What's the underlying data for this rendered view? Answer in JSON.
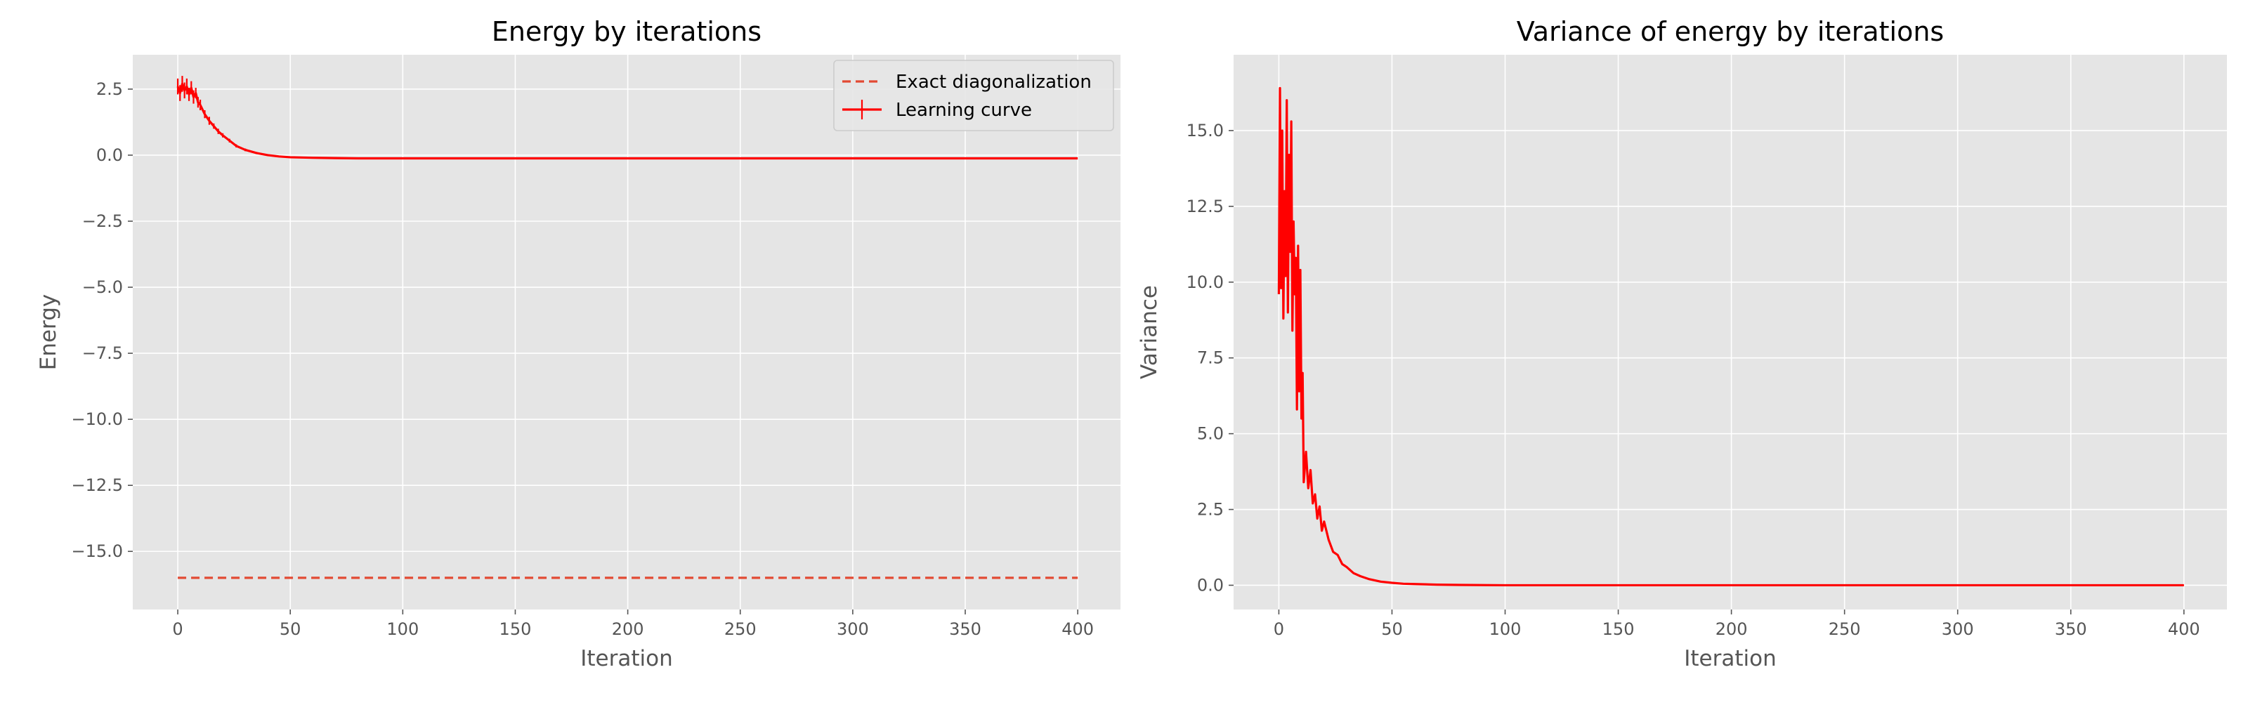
{
  "colors": {
    "background": "#ffffff",
    "axes_face": "#e5e5e5",
    "grid": "#ffffff",
    "text": "#000000",
    "tick_text": "#555555",
    "series": "#ff0000",
    "reference_line": "#e24a33"
  },
  "chart_data": [
    {
      "type": "line",
      "title": "Energy by iterations",
      "xlabel": "Iteration",
      "ylabel": "Energy",
      "xlim": [
        -20,
        419
      ],
      "ylim": [
        -17.2,
        3.8
      ],
      "grid": true,
      "legend_position": "top-right",
      "xticks": [
        0,
        50,
        100,
        150,
        200,
        250,
        300,
        350,
        400
      ],
      "xtick_labels": [
        "0",
        "50",
        "100",
        "150",
        "200",
        "250",
        "300",
        "350",
        "400"
      ],
      "yticks": [
        2.5,
        0.0,
        -2.5,
        -5.0,
        -7.5,
        -10.0,
        -12.5,
        -15.0
      ],
      "ytick_labels": [
        "2.5",
        "0.0",
        "−2.5",
        "−5.0",
        "−7.5",
        "−10.0",
        "−12.5",
        "−15.0"
      ],
      "series": [
        {
          "name": "Exact diagonalization",
          "style": "dashed",
          "color": "#e24a33",
          "x": [
            0,
            400
          ],
          "y": [
            -16.0,
            -16.0
          ]
        },
        {
          "name": "Learning curve",
          "style": "solid-errorbar",
          "color": "#ff0000",
          "x": [
            0,
            1,
            2,
            3,
            4,
            5,
            6,
            7,
            8,
            9,
            10,
            12,
            14,
            16,
            18,
            20,
            23,
            26,
            30,
            35,
            40,
            45,
            50,
            60,
            70,
            80,
            100,
            150,
            200,
            250,
            300,
            350,
            400
          ],
          "y": [
            2.6,
            2.35,
            2.7,
            2.45,
            2.6,
            2.3,
            2.55,
            2.2,
            2.35,
            2.0,
            1.9,
            1.55,
            1.3,
            1.1,
            0.9,
            0.75,
            0.55,
            0.35,
            0.2,
            0.08,
            0.0,
            -0.05,
            -0.08,
            -0.1,
            -0.11,
            -0.12,
            -0.12,
            -0.12,
            -0.12,
            -0.12,
            -0.12,
            -0.12,
            -0.12
          ],
          "yerr": [
            0.3,
            0.3,
            0.3,
            0.3,
            0.3,
            0.25,
            0.25,
            0.25,
            0.2,
            0.2,
            0.2,
            0.15,
            0.15,
            0.1,
            0.1,
            0.08,
            0.07,
            0.06,
            0.05,
            0.04,
            0.03,
            0.02,
            0.02,
            0.01,
            0.01,
            0.01,
            0.0,
            0.0,
            0.0,
            0.0,
            0.0,
            0.0,
            0.0
          ]
        }
      ]
    },
    {
      "type": "line",
      "title": "Variance of energy by iterations",
      "xlabel": "Iteration",
      "ylabel": "Variance",
      "xlim": [
        -20,
        419
      ],
      "ylim": [
        -0.8,
        17.5
      ],
      "grid": true,
      "xticks": [
        0,
        50,
        100,
        150,
        200,
        250,
        300,
        350,
        400
      ],
      "xtick_labels": [
        "0",
        "50",
        "100",
        "150",
        "200",
        "250",
        "300",
        "350",
        "400"
      ],
      "yticks": [
        0.0,
        2.5,
        5.0,
        7.5,
        10.0,
        12.5,
        15.0
      ],
      "ytick_labels": [
        "0.0",
        "2.5",
        "5.0",
        "7.5",
        "10.0",
        "12.5",
        "15.0"
      ],
      "series": [
        {
          "style": "solid",
          "color": "#ff0000",
          "x": [
            0,
            0.5,
            1,
            1.5,
            2,
            2.5,
            3,
            3.5,
            4,
            4.5,
            5,
            5.5,
            6,
            6.5,
            7,
            7.5,
            8,
            8.5,
            9,
            9.5,
            10,
            10.5,
            11,
            12,
            13,
            14,
            15,
            16,
            17,
            18,
            19,
            20,
            22,
            24,
            26,
            28,
            30,
            33,
            36,
            40,
            45,
            50,
            55,
            60,
            70,
            80,
            100,
            150,
            200,
            250,
            300,
            350,
            400
          ],
          "y": [
            9.6,
            16.4,
            9.8,
            15.0,
            8.8,
            13.0,
            10.2,
            16.0,
            9.0,
            14.2,
            11.0,
            15.3,
            8.4,
            12.0,
            9.6,
            10.8,
            5.8,
            11.2,
            6.4,
            10.4,
            5.5,
            7.0,
            3.4,
            4.4,
            3.2,
            3.8,
            2.7,
            3.0,
            2.2,
            2.6,
            1.8,
            2.1,
            1.5,
            1.1,
            1.0,
            0.7,
            0.6,
            0.4,
            0.3,
            0.2,
            0.12,
            0.08,
            0.05,
            0.04,
            0.02,
            0.01,
            0.0,
            0.0,
            0.0,
            0.0,
            0.0,
            0.0,
            0.0
          ]
        }
      ]
    }
  ]
}
